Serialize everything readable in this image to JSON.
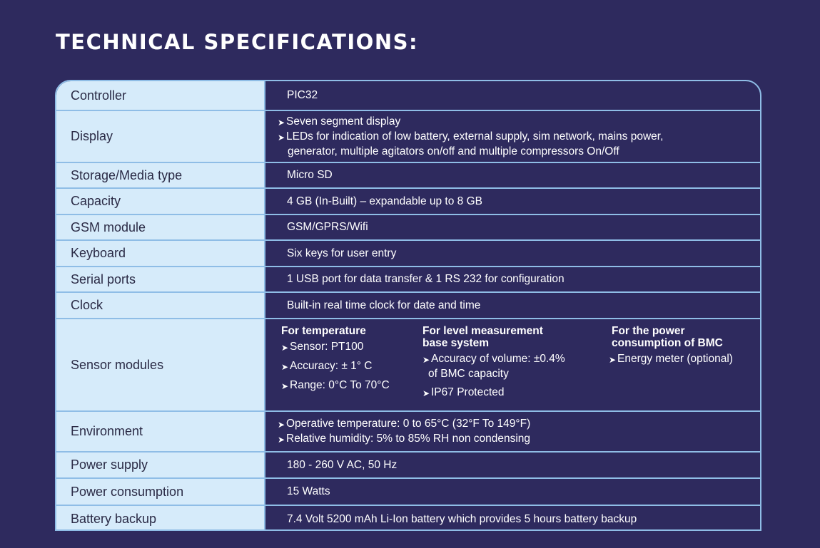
{
  "title": "TECHNICAL SPECIFICATIONS:",
  "rows": {
    "controller": {
      "label": "Controller",
      "value": "PIC32"
    },
    "display": {
      "label": "Display",
      "line1": "Seven segment display",
      "line2": "LEDs for indication of low battery, external supply, sim network, mains power,",
      "line3": "generator, multiple agitators on/off and multiple compressors On/Off"
    },
    "storage": {
      "label": "Storage/Media type",
      "value": "Micro SD"
    },
    "capacity": {
      "label": "Capacity",
      "value": "4 GB (In-Built) – expandable up to 8 GB"
    },
    "gsm": {
      "label": "GSM module",
      "value": "GSM/GPRS/Wifi"
    },
    "keyboard": {
      "label": "Keyboard",
      "value": "Six keys for user entry"
    },
    "serial": {
      "label": "Serial ports",
      "value": "1 USB port for data transfer & 1 RS 232 for configuration"
    },
    "clock": {
      "label": "Clock",
      "value": "Built-in real time clock for date and time"
    },
    "sensor": {
      "label": "Sensor modules",
      "temp": {
        "heading": "For temperature",
        "b1": "Sensor: PT100",
        "b2": "Accuracy: ± 1° C",
        "b3": "Range: 0°C To 70°C"
      },
      "level": {
        "heading1": "For level measurement",
        "heading2": "base system",
        "b1a": "Accuracy of volume: ±0.4%",
        "b1b": "of BMC capacity",
        "b2": "IP67 Protected"
      },
      "power": {
        "heading1": "For the power",
        "heading2": "consumption of BMC",
        "b1": "Energy meter (optional)"
      }
    },
    "environment": {
      "label": "Environment",
      "line1": "Operative temperature: 0 to 65°C (32°F To 149°F)",
      "line2": "Relative humidity: 5% to 85% RH non condensing"
    },
    "power_supply": {
      "label": "Power supply",
      "value": "180 - 260 V AC, 50 Hz"
    },
    "power_consumption": {
      "label": "Power consumption",
      "value": "15 Watts"
    },
    "battery": {
      "label": "Battery backup",
      "value": "7.4 Volt 5200 mAh Li-Ion battery which provides 5 hours battery backup"
    }
  },
  "colors": {
    "background": "#2e2a5e",
    "label_bg": "#d6ebfa",
    "border": "#8fbde6"
  }
}
